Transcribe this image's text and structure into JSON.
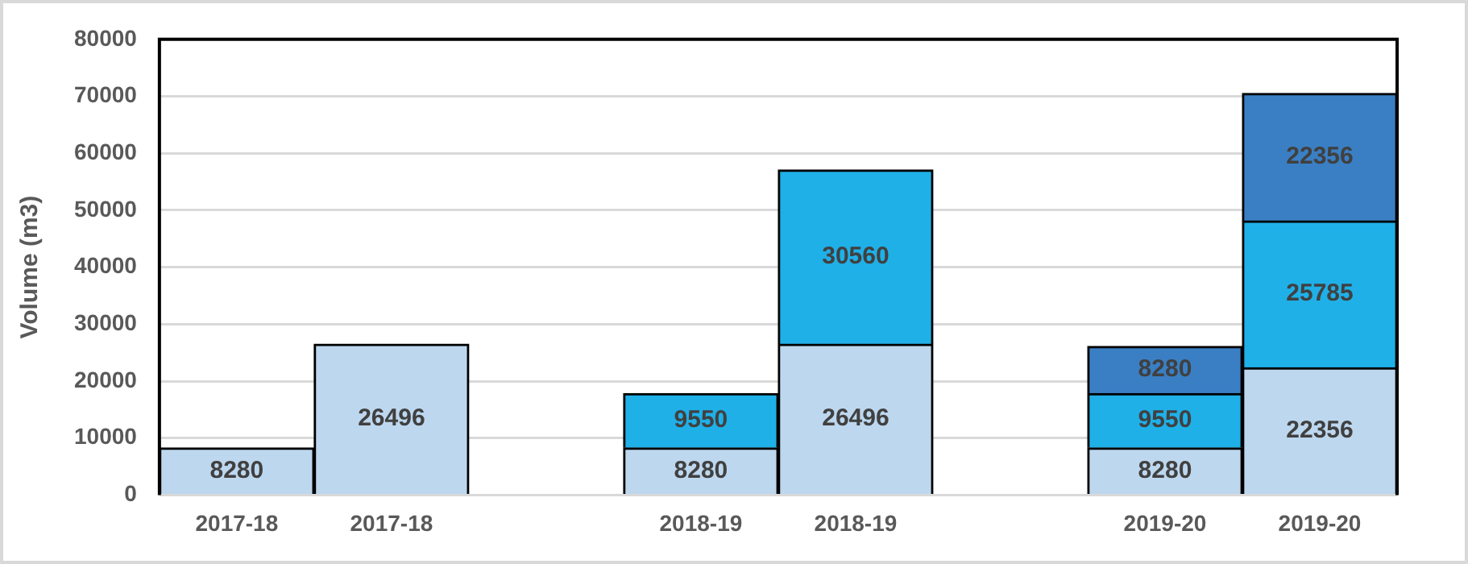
{
  "chart_data": {
    "type": "bar",
    "ylabel": "Volume (m3)",
    "stacked": true,
    "grid": "y",
    "data_labels": true,
    "categories": [
      "2017-18",
      "2017-18",
      null,
      "2018-19",
      "2018-19",
      null,
      "2019-20",
      "2019-20"
    ],
    "series": [
      {
        "color": "#bdd7ee",
        "values": [
          8280,
          26496,
          null,
          8280,
          26496,
          null,
          8280,
          22356
        ]
      },
      {
        "color": "#1fb0e8",
        "values": [
          null,
          null,
          null,
          9550,
          30560,
          null,
          9550,
          25785
        ]
      },
      {
        "color": "#3a7fc4",
        "values": [
          null,
          null,
          null,
          null,
          null,
          null,
          8280,
          22356
        ]
      }
    ],
    "ylim": [
      0,
      80000
    ],
    "yticks": [
      0,
      10000,
      20000,
      30000,
      40000,
      50000,
      60000,
      70000,
      80000
    ]
  }
}
